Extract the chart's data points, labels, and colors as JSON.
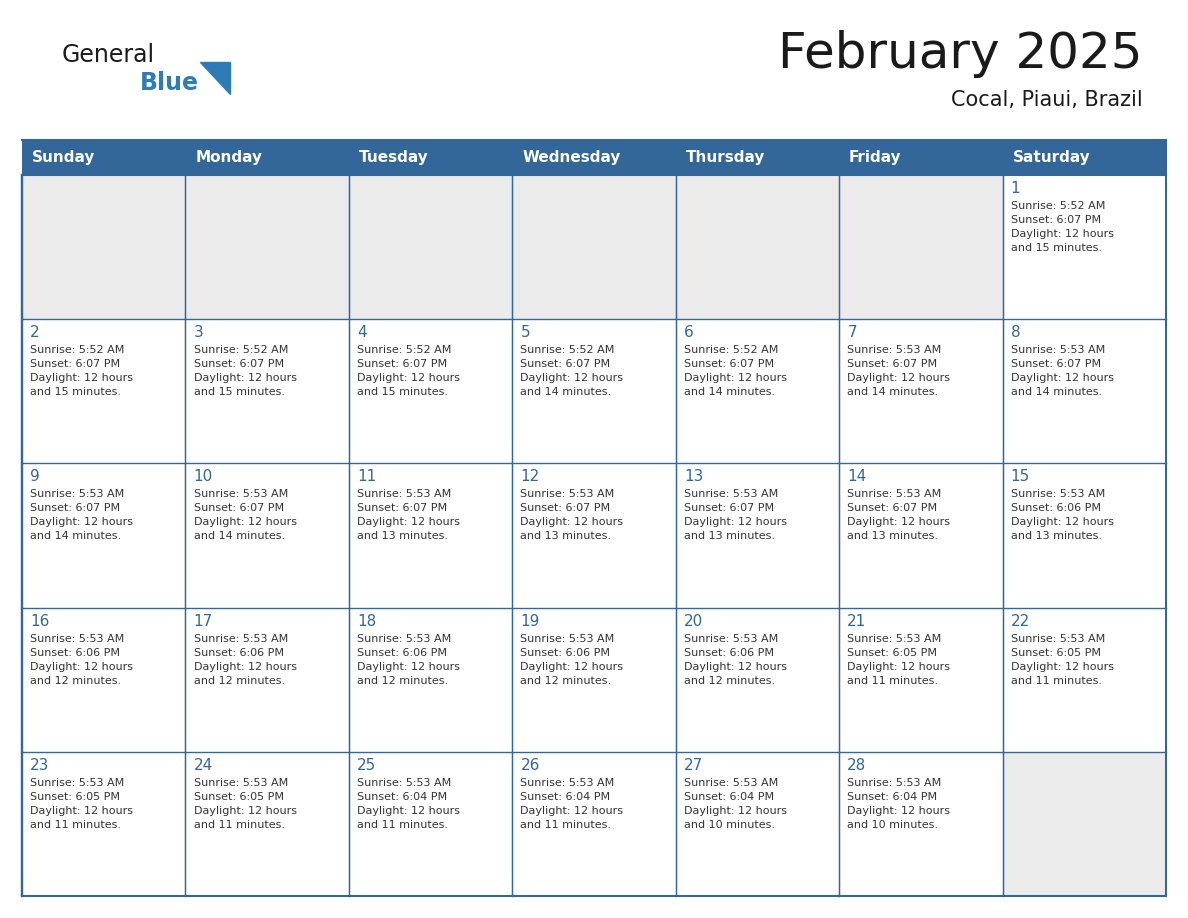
{
  "title": "February 2025",
  "subtitle": "Cocal, Piaui, Brazil",
  "header_bg": "#336699",
  "header_text_color": "#FFFFFF",
  "grid_color": "#336699",
  "day_number_color": "#336699",
  "info_text_color": "#333333",
  "empty_cell_bg": "#EBEBEB",
  "filled_cell_bg": "#FFFFFF",
  "weekdays": [
    "Sunday",
    "Monday",
    "Tuesday",
    "Wednesday",
    "Thursday",
    "Friday",
    "Saturday"
  ],
  "calendar": [
    [
      null,
      null,
      null,
      null,
      null,
      null,
      1
    ],
    [
      2,
      3,
      4,
      5,
      6,
      7,
      8
    ],
    [
      9,
      10,
      11,
      12,
      13,
      14,
      15
    ],
    [
      16,
      17,
      18,
      19,
      20,
      21,
      22
    ],
    [
      23,
      24,
      25,
      26,
      27,
      28,
      null
    ]
  ],
  "cell_data": {
    "1": {
      "sunrise": "5:52 AM",
      "sunset": "6:07 PM",
      "daylight_h": "12",
      "daylight_m": "15"
    },
    "2": {
      "sunrise": "5:52 AM",
      "sunset": "6:07 PM",
      "daylight_h": "12",
      "daylight_m": "15"
    },
    "3": {
      "sunrise": "5:52 AM",
      "sunset": "6:07 PM",
      "daylight_h": "12",
      "daylight_m": "15"
    },
    "4": {
      "sunrise": "5:52 AM",
      "sunset": "6:07 PM",
      "daylight_h": "12",
      "daylight_m": "15"
    },
    "5": {
      "sunrise": "5:52 AM",
      "sunset": "6:07 PM",
      "daylight_h": "12",
      "daylight_m": "14"
    },
    "6": {
      "sunrise": "5:52 AM",
      "sunset": "6:07 PM",
      "daylight_h": "12",
      "daylight_m": "14"
    },
    "7": {
      "sunrise": "5:53 AM",
      "sunset": "6:07 PM",
      "daylight_h": "12",
      "daylight_m": "14"
    },
    "8": {
      "sunrise": "5:53 AM",
      "sunset": "6:07 PM",
      "daylight_h": "12",
      "daylight_m": "14"
    },
    "9": {
      "sunrise": "5:53 AM",
      "sunset": "6:07 PM",
      "daylight_h": "12",
      "daylight_m": "14"
    },
    "10": {
      "sunrise": "5:53 AM",
      "sunset": "6:07 PM",
      "daylight_h": "12",
      "daylight_m": "14"
    },
    "11": {
      "sunrise": "5:53 AM",
      "sunset": "6:07 PM",
      "daylight_h": "12",
      "daylight_m": "13"
    },
    "12": {
      "sunrise": "5:53 AM",
      "sunset": "6:07 PM",
      "daylight_h": "12",
      "daylight_m": "13"
    },
    "13": {
      "sunrise": "5:53 AM",
      "sunset": "6:07 PM",
      "daylight_h": "12",
      "daylight_m": "13"
    },
    "14": {
      "sunrise": "5:53 AM",
      "sunset": "6:07 PM",
      "daylight_h": "12",
      "daylight_m": "13"
    },
    "15": {
      "sunrise": "5:53 AM",
      "sunset": "6:06 PM",
      "daylight_h": "12",
      "daylight_m": "13"
    },
    "16": {
      "sunrise": "5:53 AM",
      "sunset": "6:06 PM",
      "daylight_h": "12",
      "daylight_m": "12"
    },
    "17": {
      "sunrise": "5:53 AM",
      "sunset": "6:06 PM",
      "daylight_h": "12",
      "daylight_m": "12"
    },
    "18": {
      "sunrise": "5:53 AM",
      "sunset": "6:06 PM",
      "daylight_h": "12",
      "daylight_m": "12"
    },
    "19": {
      "sunrise": "5:53 AM",
      "sunset": "6:06 PM",
      "daylight_h": "12",
      "daylight_m": "12"
    },
    "20": {
      "sunrise": "5:53 AM",
      "sunset": "6:06 PM",
      "daylight_h": "12",
      "daylight_m": "12"
    },
    "21": {
      "sunrise": "5:53 AM",
      "sunset": "6:05 PM",
      "daylight_h": "12",
      "daylight_m": "11"
    },
    "22": {
      "sunrise": "5:53 AM",
      "sunset": "6:05 PM",
      "daylight_h": "12",
      "daylight_m": "11"
    },
    "23": {
      "sunrise": "5:53 AM",
      "sunset": "6:05 PM",
      "daylight_h": "12",
      "daylight_m": "11"
    },
    "24": {
      "sunrise": "5:53 AM",
      "sunset": "6:05 PM",
      "daylight_h": "12",
      "daylight_m": "11"
    },
    "25": {
      "sunrise": "5:53 AM",
      "sunset": "6:04 PM",
      "daylight_h": "12",
      "daylight_m": "11"
    },
    "26": {
      "sunrise": "5:53 AM",
      "sunset": "6:04 PM",
      "daylight_h": "12",
      "daylight_m": "11"
    },
    "27": {
      "sunrise": "5:53 AM",
      "sunset": "6:04 PM",
      "daylight_h": "12",
      "daylight_m": "10"
    },
    "28": {
      "sunrise": "5:53 AM",
      "sunset": "6:04 PM",
      "daylight_h": "12",
      "daylight_m": "10"
    }
  },
  "logo_text1": "General",
  "logo_text2": "Blue",
  "logo_color1": "#1a1a1a",
  "logo_color2": "#2E7BB5",
  "logo_triangle_color": "#2E7BB5",
  "title_fontsize": 36,
  "subtitle_fontsize": 15,
  "header_fontsize": 11,
  "day_num_fontsize": 11,
  "info_fontsize": 8
}
